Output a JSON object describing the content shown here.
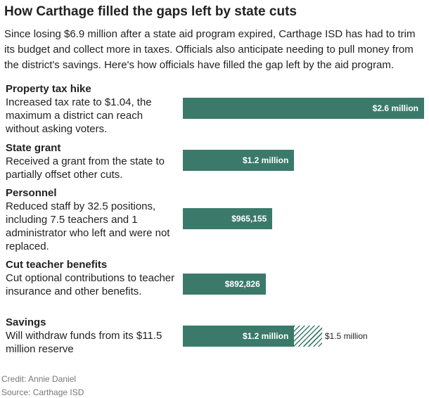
{
  "header": {
    "title": "How Carthage filled the gaps left by state cuts",
    "subtitle": "Since losing $6.9 million after a state aid program expired, Carthage ISD has had to trim its budget and collect more in taxes. Officials also anticipate needing to pull money from the district's savings. Here's how officials have filled the gap left by the aid program."
  },
  "chart_data": {
    "type": "bar",
    "orientation": "horizontal",
    "categories": [
      "Property tax hike",
      "State grant",
      "Personnel",
      "Cut teacher benefits",
      "Savings"
    ],
    "descriptions": [
      "Increased tax rate to $1.04, the maximum a district can reach without asking voters.",
      "Received a grant from the state to partially offset other cuts.",
      "Reduced staff by 32.5 positions, including 7.5 teachers and 1 administrator who left and were not replaced.",
      "Cut optional contributions to teacher insurance and other benefits.",
      "Will withdraw funds from its $11.5 million reserve"
    ],
    "values": [
      2600000,
      1200000,
      965155,
      892826,
      1200000
    ],
    "value_labels": [
      "$2.6 million",
      "$1.2 million",
      "$965,155",
      "$892,826",
      "$1.2 million"
    ],
    "extended": {
      "category": "Savings",
      "max_value": 1500000,
      "max_label": "$1.5 million",
      "style": "hatched"
    },
    "xlim": [
      0,
      2600000
    ],
    "bar_color": "#3b7a6b"
  },
  "footer": {
    "credit": "Credit: Annie Daniel",
    "source": "Source: Carthage ISD"
  }
}
